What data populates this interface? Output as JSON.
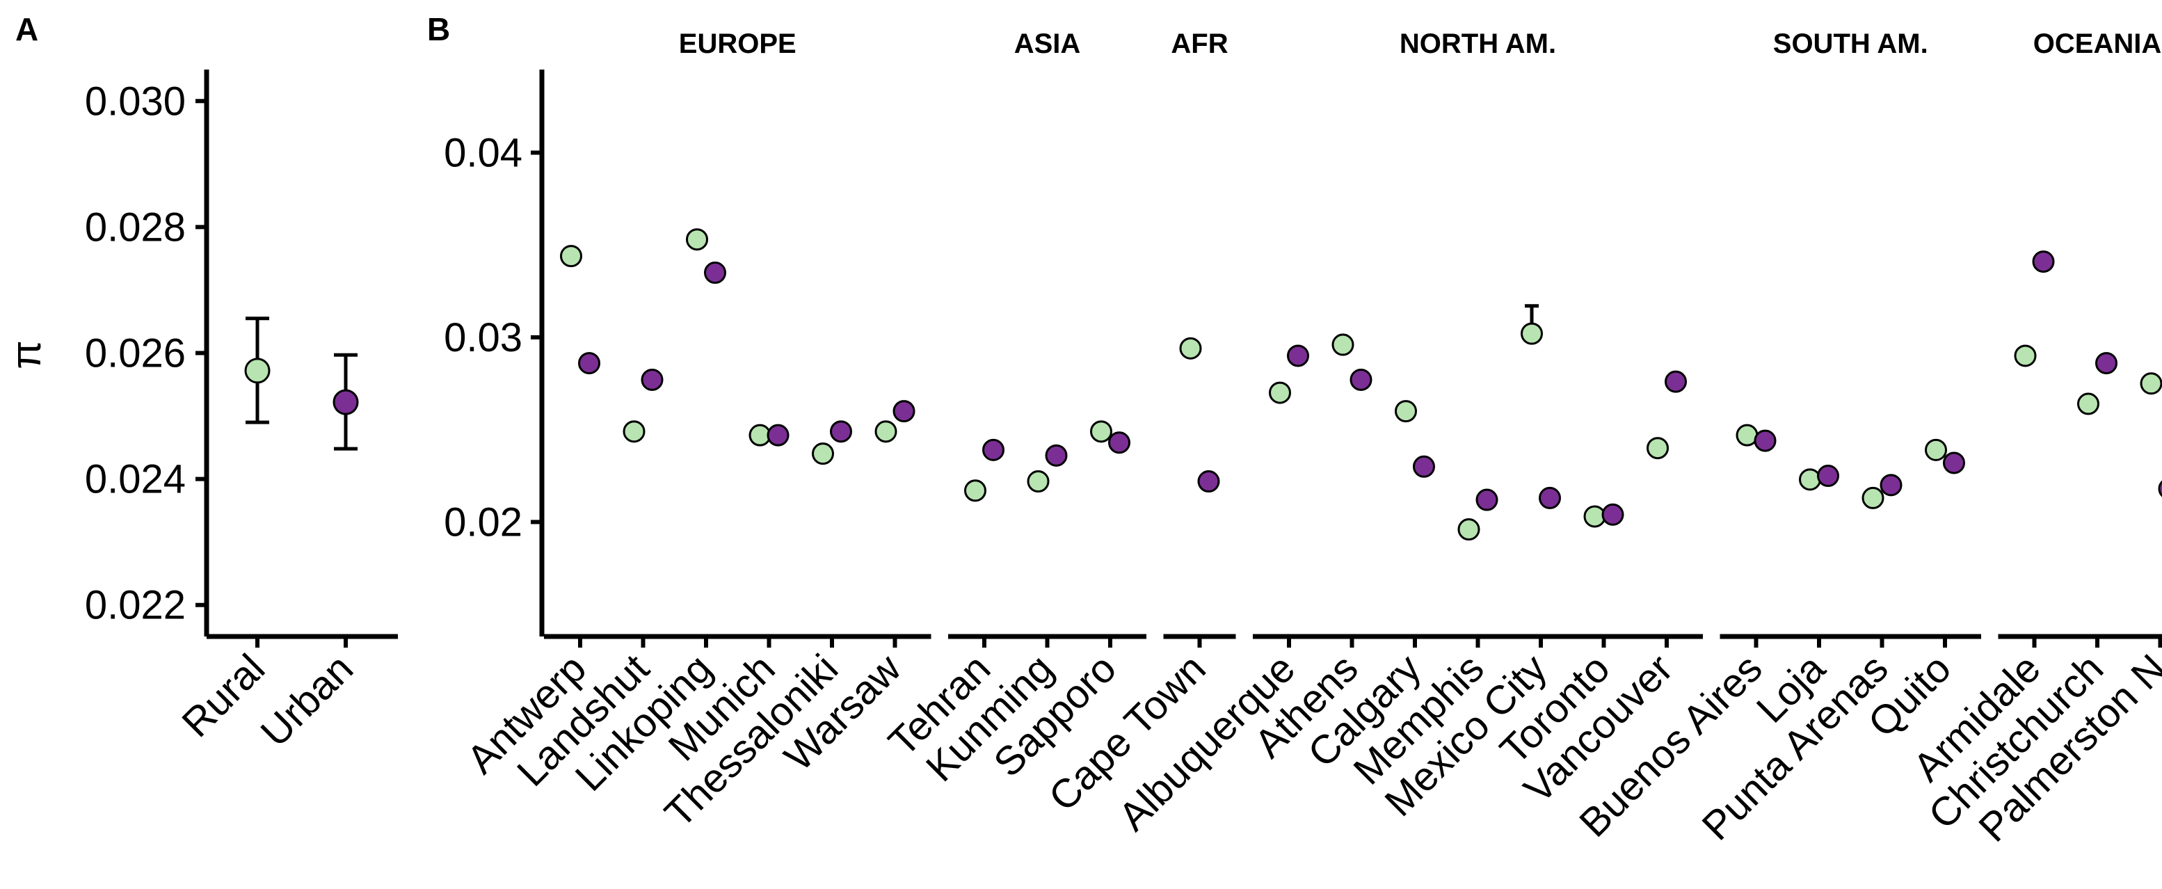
{
  "chart_data": [
    {
      "type": "scatter",
      "panel_label": "A",
      "ylabel": "π",
      "ylim": [
        0.0215,
        0.0305
      ],
      "yticks": [
        "0.022",
        "0.024",
        "0.026",
        "0.028",
        "0.030"
      ],
      "categories": [
        "Rural",
        "Urban"
      ],
      "points": [
        {
          "category": "Rural",
          "group": "Rural",
          "value": 0.02572,
          "err_low": 0.0249,
          "err_high": 0.02655
        },
        {
          "category": "Urban",
          "group": "Urban",
          "value": 0.02522,
          "err_low": 0.02448,
          "err_high": 0.02597
        }
      ],
      "colors": {
        "Rural": "#b7e4b0",
        "Urban": "#7b2f94"
      }
    },
    {
      "type": "scatter",
      "panel_label": "B",
      "ylim": [
        0.0138,
        0.0445
      ],
      "yticks": [
        "0.02",
        "0.03",
        "0.04"
      ],
      "regions": [
        {
          "name": "EUROPE",
          "cities": [
            {
              "city": "Antwerp",
              "rural": 0.0344,
              "urban": 0.0286
            },
            {
              "city": "Landshut",
              "rural": 0.0249,
              "urban": 0.0277
            },
            {
              "city": "Linkoping",
              "rural": 0.0353,
              "urban": 0.0335
            },
            {
              "city": "Munich",
              "rural": 0.0247,
              "urban": 0.0247
            },
            {
              "city": "Thessaloniki",
              "rural": 0.0237,
              "urban": 0.0249
            },
            {
              "city": "Warsaw",
              "rural": 0.0249,
              "urban": 0.026
            }
          ]
        },
        {
          "name": "ASIA",
          "cities": [
            {
              "city": "Tehran",
              "rural": 0.0217,
              "urban": 0.0239
            },
            {
              "city": "Kunming",
              "rural": 0.0222,
              "urban": 0.0236
            },
            {
              "city": "Sapporo",
              "rural": 0.0249,
              "urban": 0.0243
            }
          ]
        },
        {
          "name": "AFR",
          "cities": [
            {
              "city": "Cape Town",
              "rural": 0.0294,
              "urban": 0.0222
            }
          ]
        },
        {
          "name": "NORTH AM.",
          "cities": [
            {
              "city": "Albuquerque",
              "rural": 0.027,
              "urban": 0.029
            },
            {
              "city": "Athens",
              "rural": 0.0296,
              "urban": 0.0277
            },
            {
              "city": "Calgary",
              "rural": 0.026,
              "urban": 0.023
            },
            {
              "city": "Memphis",
              "rural": 0.0196,
              "urban": 0.0212
            },
            {
              "city": "Mexico City",
              "rural": 0.0302,
              "urban": 0.0213,
              "rural_err_high": 0.0317
            },
            {
              "city": "Toronto",
              "rural": 0.0203,
              "urban": 0.0204
            },
            {
              "city": "Vancouver",
              "rural": 0.024,
              "urban": 0.0276
            }
          ]
        },
        {
          "name": "SOUTH AM.",
          "cities": [
            {
              "city": "Buenos Aires",
              "rural": 0.0247,
              "urban": 0.0244
            },
            {
              "city": "Loja",
              "rural": 0.0223,
              "urban": 0.0225
            },
            {
              "city": "Punta Arenas",
              "rural": 0.0213,
              "urban": 0.022
            },
            {
              "city": "Quito",
              "rural": 0.0239,
              "urban": 0.0232
            }
          ]
        },
        {
          "name": "OCEANIA",
          "cities": [
            {
              "city": "Armidale",
              "rural": 0.029,
              "urban": 0.0341
            },
            {
              "city": "Christchurch",
              "rural": 0.0264,
              "urban": 0.0286
            },
            {
              "city": "Palmerston N",
              "rural": 0.0275,
              "urban": 0.0218
            }
          ]
        }
      ],
      "colors": {
        "rural": "#b7e4b0",
        "urban": "#7b2f94"
      }
    }
  ]
}
